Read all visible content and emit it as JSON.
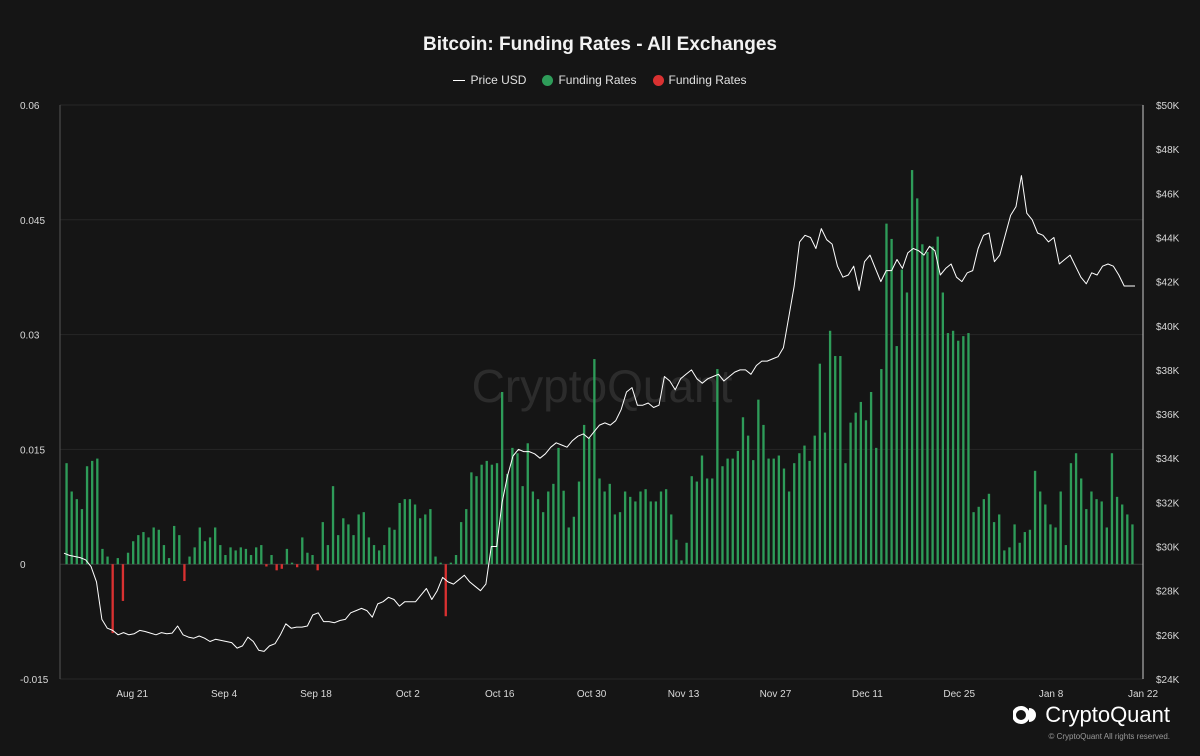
{
  "chart_data": {
    "type": "bar",
    "title": "Bitcoin: Funding Rates - All Exchanges",
    "legend": [
      {
        "name": "Price USD",
        "kind": "line",
        "color": "#ffffff"
      },
      {
        "name": "Funding Rates",
        "kind": "dot",
        "color": "#2e9c59"
      },
      {
        "name": "Funding Rates",
        "kind": "dot",
        "color": "#d93131"
      }
    ],
    "colors": {
      "positive": "#2e9c59",
      "negative": "#d93131",
      "price_line": "#ffffff",
      "background": "#151515",
      "grid": "#262626"
    },
    "left_axis": {
      "ylim": [
        -0.015,
        0.06
      ],
      "ticks": [
        -0.015,
        0,
        0.015,
        0.03,
        0.045,
        0.06
      ],
      "tick_labels": [
        "-0.015",
        "0",
        "0.015",
        "0.03",
        "0.045",
        "0.06"
      ]
    },
    "right_axis": {
      "ylim": [
        24000,
        50000
      ],
      "ticks": [
        24000,
        26000,
        28000,
        30000,
        32000,
        34000,
        36000,
        38000,
        40000,
        42000,
        44000,
        46000,
        48000,
        50000
      ],
      "tick_labels": [
        "$24K",
        "$26K",
        "$28K",
        "$30K",
        "$32K",
        "$34K",
        "$36K",
        "$38K",
        "$40K",
        "$42K",
        "$44K",
        "$46K",
        "$48K",
        "$50K"
      ]
    },
    "x_axis": {
      "start_date": "2023-08-10",
      "end_date": "2024-01-22",
      "ticks": [
        {
          "date": "2023-08-21",
          "label": "Aug 21"
        },
        {
          "date": "2023-09-04",
          "label": "Sep 4"
        },
        {
          "date": "2023-09-18",
          "label": "Sep 18"
        },
        {
          "date": "2023-10-02",
          "label": "Oct 2"
        },
        {
          "date": "2023-10-16",
          "label": "Oct 16"
        },
        {
          "date": "2023-10-30",
          "label": "Oct 30"
        },
        {
          "date": "2023-11-13",
          "label": "Nov 13"
        },
        {
          "date": "2023-11-27",
          "label": "Nov 27"
        },
        {
          "date": "2023-12-11",
          "label": "Dec 11"
        },
        {
          "date": "2023-12-25",
          "label": "Dec 25"
        },
        {
          "date": "2024-01-08",
          "label": "Jan 8"
        },
        {
          "date": "2024-01-22",
          "label": "Jan 22"
        }
      ]
    },
    "funding_rates": [
      0.0132,
      0.0095,
      0.0085,
      0.0072,
      0.0128,
      0.0135,
      0.0138,
      0.002,
      0.001,
      -0.009,
      0.0008,
      -0.0048,
      0.0015,
      0.003,
      0.0038,
      0.0042,
      0.0035,
      0.0048,
      0.0045,
      0.0025,
      0.0008,
      0.005,
      0.0038,
      -0.0022,
      0.001,
      0.0022,
      0.0048,
      0.003,
      0.0035,
      0.0048,
      0.0025,
      0.0012,
      0.0022,
      0.0018,
      0.0022,
      0.002,
      0.0012,
      0.0022,
      0.0025,
      -0.0003,
      0.0012,
      -0.0008,
      -0.0006,
      0.002,
      0.0002,
      -0.0004,
      0.0035,
      0.0015,
      0.0012,
      -0.0008,
      0.0055,
      0.0025,
      0.0102,
      0.0038,
      0.006,
      0.0052,
      0.0038,
      0.0065,
      0.0068,
      0.0035,
      0.0025,
      0.0018,
      0.0025,
      0.0048,
      0.0045,
      0.008,
      0.0085,
      0.0085,
      0.0078,
      0.006,
      0.0065,
      0.0072,
      0.001,
      0.0002,
      -0.0068,
      0.0002,
      0.0012,
      0.0055,
      0.0072,
      0.012,
      0.0115,
      0.013,
      0.0135,
      0.013,
      0.0132,
      0.0225,
      0.0118,
      0.0152,
      0.0145,
      0.0102,
      0.0158,
      0.0095,
      0.0085,
      0.0068,
      0.0095,
      0.0105,
      0.0152,
      0.0096,
      0.0048,
      0.0062,
      0.0108,
      0.0182,
      0.0165,
      0.0268,
      0.0112,
      0.0095,
      0.0105,
      0.0065,
      0.0068,
      0.0095,
      0.0088,
      0.0082,
      0.0095,
      0.0098,
      0.0082,
      0.0082,
      0.0095,
      0.0098,
      0.0065,
      0.0032,
      0.0005,
      0.0028,
      0.0115,
      0.0108,
      0.0142,
      0.0112,
      0.0112,
      0.0255,
      0.0128,
      0.0138,
      0.0138,
      0.0148,
      0.0192,
      0.0168,
      0.0136,
      0.0215,
      0.0182,
      0.0138,
      0.0138,
      0.0142,
      0.0125,
      0.0095,
      0.0132,
      0.0145,
      0.0155,
      0.0135,
      0.0168,
      0.0262,
      0.0172,
      0.0305,
      0.0272,
      0.0272,
      0.0132,
      0.0185,
      0.0198,
      0.0212,
      0.0188,
      0.0225,
      0.0152,
      0.0255,
      0.0445,
      0.0425,
      0.0285,
      0.0385,
      0.0355,
      0.0515,
      0.0478,
      0.0418,
      0.0408,
      0.0415,
      0.0428,
      0.0355,
      0.0302,
      0.0305,
      0.0292,
      0.0298,
      0.0302,
      0.0068,
      0.0075,
      0.0085,
      0.0092,
      0.0055,
      0.0065,
      0.0018,
      0.0022,
      0.0052,
      0.0028,
      0.0042,
      0.0045,
      0.0122,
      0.0095,
      0.0078,
      0.0052,
      0.0048,
      0.0095,
      0.0025,
      0.0132,
      0.0145,
      0.0112,
      0.0072,
      0.0095,
      0.0085,
      0.0082,
      0.0048,
      0.0145,
      0.0088,
      0.0078,
      0.0065,
      0.0052
    ],
    "price_usd": [
      29700,
      29600,
      29550,
      29500,
      29400,
      29100,
      28400,
      26700,
      26300,
      26200,
      26000,
      26100,
      26000,
      26050,
      26200,
      26150,
      26080,
      26000,
      26100,
      26050,
      26080,
      26400,
      26000,
      25900,
      25850,
      25950,
      25850,
      25700,
      25800,
      25750,
      25700,
      25650,
      25400,
      25500,
      25900,
      25700,
      25300,
      25250,
      25500,
      25600,
      26000,
      26500,
      26300,
      26350,
      26350,
      26400,
      26900,
      27000,
      26600,
      26600,
      26550,
      26650,
      26700,
      27000,
      27100,
      27200,
      27100,
      26800,
      27400,
      27500,
      27700,
      27600,
      27300,
      27500,
      27500,
      27500,
      27800,
      28100,
      27600,
      28000,
      28600,
      28400,
      28300,
      28500,
      28700,
      28400,
      28200,
      28000,
      28300,
      30000,
      30000,
      32000,
      33200,
      34100,
      34400,
      34300,
      34300,
      34200,
      34000,
      34200,
      34500,
      34700,
      34600,
      34500,
      34800,
      35000,
      35100,
      34900,
      35200,
      35500,
      35600,
      35500,
      35700,
      36200,
      37000,
      37200,
      36400,
      36400,
      36500,
      36300,
      36400,
      37700,
      37500,
      37100,
      37600,
      37800,
      38000,
      37600,
      37400,
      37600,
      37700,
      37800,
      37500,
      37700,
      37900,
      38000,
      38000,
      37800,
      38200,
      38400,
      38400,
      38500,
      38600,
      39000,
      40400,
      41800,
      43800,
      44100,
      44000,
      43500,
      44400,
      43900,
      43700,
      42700,
      42200,
      42300,
      42700,
      41600,
      42900,
      43200,
      42600,
      42000,
      42500,
      42500,
      43000,
      42600,
      43300,
      43500,
      43400,
      43200,
      43600,
      43400,
      42300,
      42600,
      42800,
      42200,
      42000,
      42400,
      42500,
      43500,
      44100,
      44200,
      42900,
      43200,
      44100,
      45000,
      45400,
      46800,
      45100,
      44800,
      44200,
      44100,
      43800,
      44000,
      42800,
      43000,
      43200,
      42700,
      42200,
      41900,
      42400,
      42300,
      42700,
      42800,
      42700,
      42300,
      41800,
      41800,
      41800
    ],
    "watermark": "CryptoQuant"
  },
  "branding": {
    "name": "CryptoQuant",
    "copyright": "© CryptoQuant All rights reserved."
  }
}
